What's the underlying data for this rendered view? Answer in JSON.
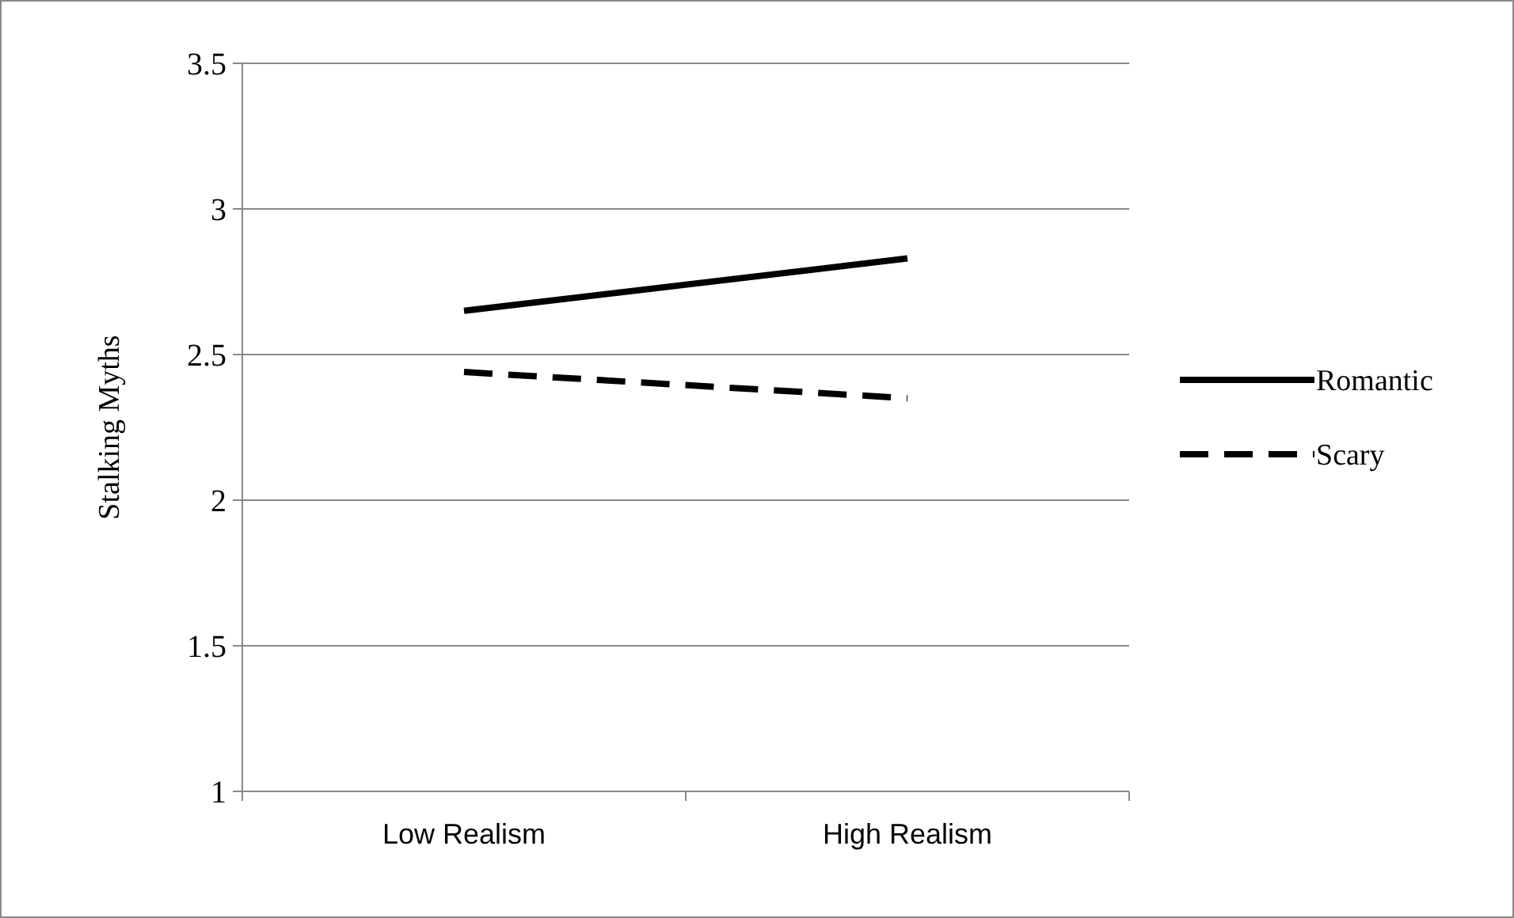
{
  "chart_data": {
    "type": "line",
    "ylabel": "Stalking Myths",
    "categories": [
      "Low Realism",
      "High Realism"
    ],
    "series": [
      {
        "name": "Romantic",
        "color": "#000000",
        "values": [
          2.65,
          2.83
        ],
        "line_style": "solid"
      },
      {
        "name": "Scary",
        "color": "#000000",
        "values": [
          2.44,
          2.35
        ],
        "line_style": "dashed"
      }
    ],
    "ylim": [
      1,
      3.5
    ],
    "yticks": [
      1,
      1.5,
      2,
      2.5,
      3,
      3.5
    ],
    "grid": "y",
    "legend": "right"
  }
}
